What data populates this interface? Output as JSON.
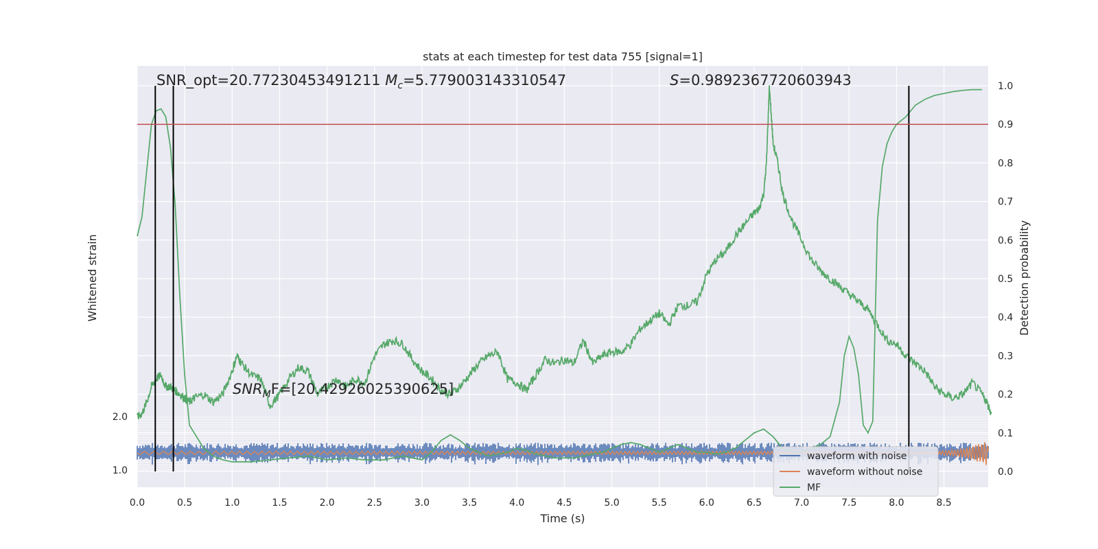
{
  "chart_data": {
    "type": "line",
    "title": "stats at each timestep for test data 755 [signal=1]",
    "xlabel": "Time (s)",
    "ylabel_left": "Whitened strain",
    "ylabel_right": "Detection probability",
    "xlim": [
      0.0,
      9.0
    ],
    "ylim_right": [
      -0.05,
      1.05
    ],
    "x_ticks": [
      "0.0",
      "0.5",
      "1.0",
      "1.5",
      "2.0",
      "2.5",
      "3.0",
      "3.5",
      "4.0",
      "4.5",
      "5.0",
      "5.5",
      "6.0",
      "6.5",
      "7.0",
      "7.5",
      "8.0",
      "8.5"
    ],
    "y_right_ticks": [
      "0.0",
      "0.1",
      "0.2",
      "0.3",
      "0.4",
      "0.5",
      "0.6",
      "0.7",
      "0.8",
      "0.9",
      "1.0"
    ],
    "y_left_ticks": [
      "2.0",
      "1.0"
    ],
    "threshold": 0.9,
    "vlines": [
      0.19,
      0.38,
      8.13
    ],
    "annotations": {
      "snr_opt": "SNR_opt=20.77230453491211 ",
      "mc": "=5.779003143310547",
      "mc_symbol": "M",
      "mc_sub": "c",
      "s_symbol": "S",
      "s_value": "=0.9892367720603943",
      "snr_mf_symbol": "SNR",
      "snr_mf_sub": "M",
      "snr_mf_value": "F=[20.42926025390625]"
    },
    "grid": true,
    "legend_location": "lower-right",
    "series": [
      {
        "name": "waveform with noise",
        "color": "#4c72b0",
        "kind": "noise-band"
      },
      {
        "name": "waveform without noise",
        "color": "#dd8452",
        "kind": "chirp"
      },
      {
        "name": "MF",
        "color": "#55a868",
        "kind": "probability"
      }
    ],
    "detection_probability_1": {
      "x": [
        0.0,
        0.05,
        0.1,
        0.15,
        0.2,
        0.25,
        0.3,
        0.35,
        0.4,
        0.45,
        0.5,
        0.55,
        0.6,
        0.65,
        0.7,
        0.8,
        0.9,
        1.0,
        1.2,
        1.4,
        1.6,
        1.8,
        2.0,
        2.2,
        2.4,
        2.6,
        2.8,
        3.0,
        3.1,
        3.2,
        3.3,
        3.4,
        3.5,
        3.6,
        3.7,
        3.8,
        3.9,
        4.0,
        4.1,
        4.2,
        4.3,
        4.4,
        4.5,
        4.6,
        4.7,
        4.8,
        4.9,
        5.0,
        5.1,
        5.2,
        5.3,
        5.4,
        5.5,
        5.6,
        5.7,
        5.8,
        5.9,
        6.0,
        6.1,
        6.2,
        6.3,
        6.4,
        6.5,
        6.6,
        6.7,
        6.8,
        6.9,
        7.0,
        7.1,
        7.2,
        7.3,
        7.4,
        7.45,
        7.5,
        7.55,
        7.6,
        7.65,
        7.7,
        7.75,
        7.8,
        7.85,
        7.9,
        7.95,
        8.0,
        8.05,
        8.1,
        8.15,
        8.2,
        8.3,
        8.4,
        8.5,
        8.6,
        8.7,
        8.8,
        8.9
      ],
      "y": [
        0.61,
        0.66,
        0.78,
        0.9,
        0.935,
        0.94,
        0.92,
        0.84,
        0.69,
        0.45,
        0.25,
        0.12,
        0.1,
        0.08,
        0.06,
        0.04,
        0.03,
        0.025,
        0.025,
        0.03,
        0.035,
        0.04,
        0.03,
        0.035,
        0.03,
        0.03,
        0.04,
        0.03,
        0.05,
        0.08,
        0.095,
        0.08,
        0.06,
        0.05,
        0.04,
        0.045,
        0.05,
        0.06,
        0.055,
        0.045,
        0.04,
        0.035,
        0.035,
        0.035,
        0.04,
        0.045,
        0.05,
        0.06,
        0.07,
        0.075,
        0.07,
        0.06,
        0.05,
        0.06,
        0.07,
        0.06,
        0.05,
        0.05,
        0.045,
        0.05,
        0.06,
        0.08,
        0.1,
        0.11,
        0.09,
        0.06,
        0.05,
        0.05,
        0.06,
        0.07,
        0.09,
        0.18,
        0.3,
        0.35,
        0.32,
        0.25,
        0.12,
        0.1,
        0.13,
        0.65,
        0.79,
        0.85,
        0.88,
        0.9,
        0.91,
        0.92,
        0.935,
        0.95,
        0.965,
        0.975,
        0.98,
        0.985,
        0.988,
        0.99,
        0.99
      ]
    },
    "detection_probability_2": {
      "x": [
        0.0,
        0.05,
        0.1,
        0.15,
        0.2,
        0.25,
        0.3,
        0.35,
        0.4,
        0.45,
        0.5,
        0.55,
        0.6,
        0.7,
        0.8,
        0.9,
        1.0,
        1.05,
        1.1,
        1.2,
        1.3,
        1.4,
        1.5,
        1.6,
        1.7,
        1.8,
        1.9,
        2.0,
        2.1,
        2.2,
        2.3,
        2.4,
        2.5,
        2.6,
        2.7,
        2.8,
        2.9,
        3.0,
        3.1,
        3.2,
        3.3,
        3.4,
        3.5,
        3.6,
        3.7,
        3.8,
        3.9,
        4.0,
        4.1,
        4.2,
        4.3,
        4.4,
        4.5,
        4.6,
        4.7,
        4.8,
        4.9,
        5.0,
        5.1,
        5.2,
        5.3,
        5.4,
        5.5,
        5.6,
        5.7,
        5.8,
        5.9,
        6.0,
        6.1,
        6.2,
        6.3,
        6.4,
        6.5,
        6.55,
        6.6,
        6.63,
        6.66,
        6.7,
        6.75,
        6.8,
        6.9,
        7.0,
        7.1,
        7.2,
        7.3,
        7.4,
        7.5,
        7.6,
        7.7,
        7.8,
        7.9,
        8.0,
        8.1,
        8.2,
        8.3,
        8.4,
        8.5,
        8.6,
        8.7,
        8.8,
        8.9,
        8.95,
        9.0
      ],
      "y": [
        0.14,
        0.15,
        0.18,
        0.22,
        0.24,
        0.25,
        0.22,
        0.22,
        0.21,
        0.2,
        0.19,
        0.18,
        0.19,
        0.2,
        0.18,
        0.2,
        0.26,
        0.3,
        0.28,
        0.25,
        0.24,
        0.17,
        0.2,
        0.24,
        0.27,
        0.26,
        0.2,
        0.22,
        0.24,
        0.22,
        0.24,
        0.23,
        0.3,
        0.33,
        0.34,
        0.33,
        0.29,
        0.26,
        0.24,
        0.21,
        0.2,
        0.22,
        0.25,
        0.28,
        0.3,
        0.31,
        0.24,
        0.23,
        0.21,
        0.25,
        0.29,
        0.28,
        0.29,
        0.28,
        0.34,
        0.28,
        0.3,
        0.31,
        0.31,
        0.33,
        0.37,
        0.39,
        0.41,
        0.38,
        0.43,
        0.43,
        0.44,
        0.51,
        0.55,
        0.57,
        0.61,
        0.64,
        0.67,
        0.68,
        0.72,
        0.8,
        1.0,
        0.85,
        0.8,
        0.72,
        0.65,
        0.6,
        0.55,
        0.52,
        0.5,
        0.48,
        0.46,
        0.44,
        0.42,
        0.38,
        0.34,
        0.33,
        0.3,
        0.28,
        0.26,
        0.22,
        0.2,
        0.19,
        0.2,
        0.23,
        0.2,
        0.18,
        0.15
      ]
    }
  }
}
